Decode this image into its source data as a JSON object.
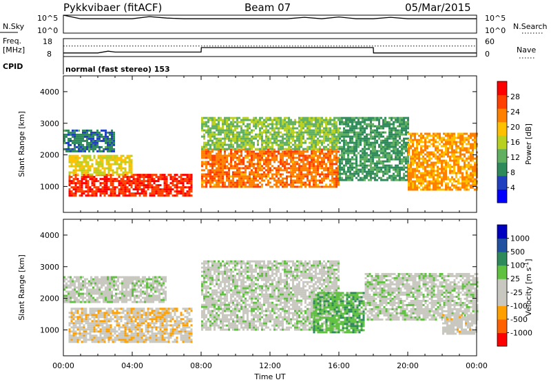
{
  "header": {
    "station": "Pykkvibaer (fitACF)",
    "beam": "Beam 07",
    "date": "05/Mar/2015"
  },
  "sky_panel": {
    "left_label": "N.Sky",
    "right_label": "N.Search",
    "left_ticks": [
      "10^5",
      "10^0"
    ],
    "right_ticks": [
      "10^5",
      "10^0"
    ]
  },
  "freq_panel": {
    "left_label_1": "Freq.",
    "left_label_2": "[MHz]",
    "right_label": "Nave",
    "left_ticks": [
      "18",
      "8"
    ],
    "right_ticks": [
      "60",
      "0"
    ]
  },
  "cpid_panel": {
    "label": "CPID",
    "text": "normal (fast stereo) 153"
  },
  "chart_data": [
    {
      "type": "line",
      "title": "N.Sky / N.Search",
      "x": [
        0,
        1,
        2,
        3,
        4,
        5,
        6,
        7,
        8,
        9,
        10,
        11,
        12,
        13,
        14,
        15,
        16,
        17,
        18,
        19,
        20,
        21,
        22,
        23,
        24
      ],
      "series": [
        {
          "name": "N.Sky",
          "values": [
            5,
            4,
            4,
            4,
            4,
            4.6,
            4.2,
            4,
            4,
            4,
            4,
            4,
            4,
            4,
            4.4,
            4,
            4.5,
            4,
            4,
            4.4,
            4,
            4,
            4,
            4,
            4
          ]
        }
      ],
      "ylim": [
        0,
        5
      ]
    },
    {
      "type": "line",
      "title": "Freq / Nave",
      "x": [
        0,
        2,
        2.6,
        3,
        8,
        8.01,
        18,
        18.01,
        24
      ],
      "series": [
        {
          "name": "Freq",
          "values": [
            10,
            10,
            11,
            10.5,
            10.5,
            13,
            13,
            10,
            10
          ]
        },
        {
          "name": "Nave",
          "values": [
            35,
            35,
            35,
            35,
            35,
            35,
            35,
            35,
            35
          ]
        }
      ],
      "ylim": [
        8,
        18
      ]
    },
    {
      "type": "heatmap",
      "title": "Power",
      "xlabel": "Time UT",
      "ylabel": "Slant Range [km]",
      "colorbar_label": "Power [dB]",
      "x_ticks": [
        "00:00",
        "04:00",
        "08:00",
        "12:00",
        "16:00",
        "20:00",
        "00:00"
      ],
      "y_ticks": [
        "1000",
        "2000",
        "3000",
        "4000"
      ],
      "ylim": [
        180,
        4500
      ],
      "xlim": [
        0,
        24
      ],
      "colorbar_ticks": [
        "28",
        "24",
        "20",
        "16",
        "12",
        "8",
        "4"
      ],
      "colorbar_range": [
        0,
        32
      ],
      "bands": [
        {
          "t_start": 0.3,
          "t_end": 7.5,
          "r_low": 700,
          "r_high": 1400,
          "level": 28
        },
        {
          "t_start": 0.3,
          "t_end": 4.0,
          "r_low": 1400,
          "r_high": 2000,
          "level": 18
        },
        {
          "t_start": 0.0,
          "t_end": 3.0,
          "r_low": 2100,
          "r_high": 2800,
          "level": 8
        },
        {
          "t_start": 8.0,
          "t_end": 16.0,
          "r_low": 1000,
          "r_high": 2200,
          "level": 24
        },
        {
          "t_start": 8.0,
          "t_end": 16.0,
          "r_low": 2200,
          "r_high": 3200,
          "level": 14
        },
        {
          "t_start": 16.0,
          "t_end": 20.0,
          "r_low": 1200,
          "r_high": 3200,
          "level": 10
        },
        {
          "t_start": 20.0,
          "t_end": 24.0,
          "r_low": 900,
          "r_high": 2700,
          "level": 22
        }
      ]
    },
    {
      "type": "heatmap",
      "title": "Velocity",
      "xlabel": "Time UT",
      "ylabel": "Slant Range [km]",
      "colorbar_label": "Velocity [m s^-1]",
      "x_ticks": [
        "00:00",
        "04:00",
        "08:00",
        "12:00",
        "16:00",
        "20:00",
        "00:00"
      ],
      "y_ticks": [
        "1000",
        "2000",
        "3000",
        "4000"
      ],
      "ylim": [
        180,
        4500
      ],
      "xlim": [
        0,
        24
      ],
      "colorbar_ticks": [
        "1000",
        "500",
        "100",
        "25",
        "-25",
        "-100",
        "-500",
        "-1000"
      ],
      "colorbar_range": [
        -1200,
        1200
      ],
      "bands": [
        {
          "t_start": 0.3,
          "t_end": 7.5,
          "r_low": 600,
          "r_high": 1700,
          "level": -300
        },
        {
          "t_start": 0.0,
          "t_end": 6.0,
          "r_low": 1900,
          "r_high": 2700,
          "level": 0
        },
        {
          "t_start": 8.0,
          "t_end": 16.0,
          "r_low": 1000,
          "r_high": 3200,
          "level": 0
        },
        {
          "t_start": 14.5,
          "t_end": 17.5,
          "r_low": 900,
          "r_high": 2200,
          "level": 300
        },
        {
          "t_start": 17.5,
          "t_end": 24.0,
          "r_low": 1300,
          "r_high": 2800,
          "level": 0
        },
        {
          "t_start": 22.0,
          "t_end": 24.0,
          "r_low": 900,
          "r_high": 1500,
          "level": -200
        }
      ]
    }
  ]
}
